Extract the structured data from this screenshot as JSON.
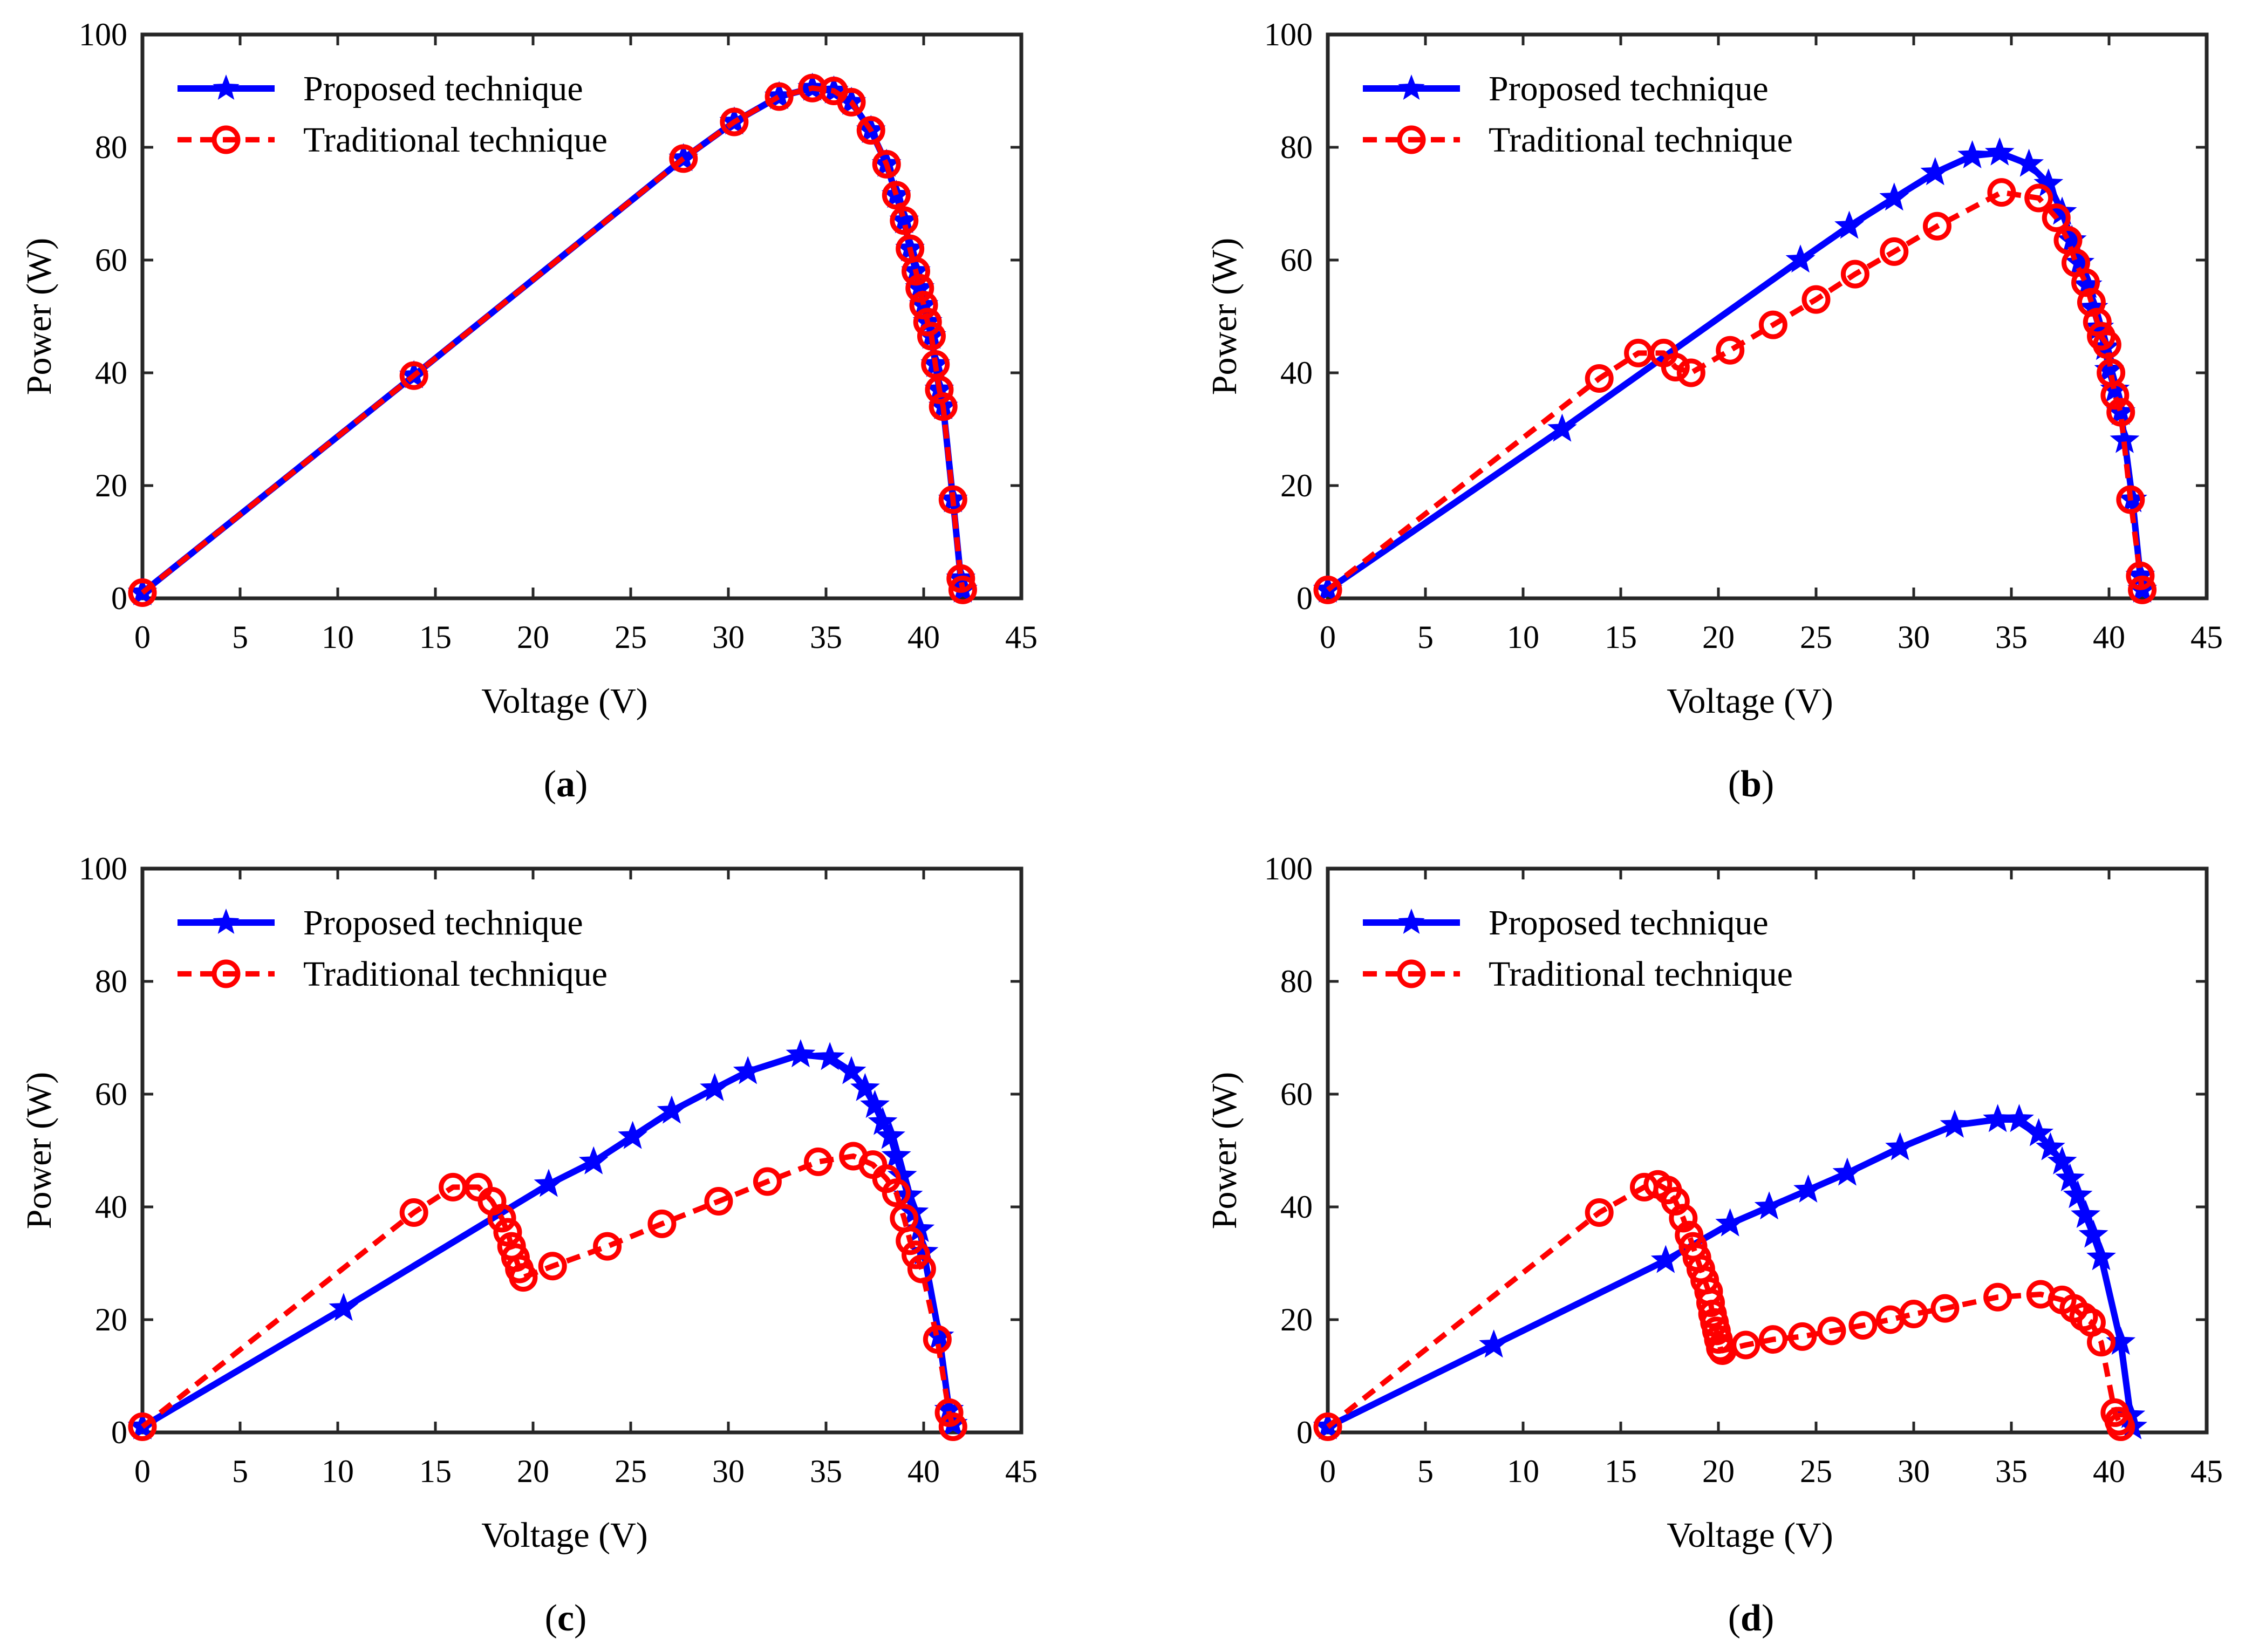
{
  "figure": {
    "panels": [
      "a",
      "b",
      "c",
      "d"
    ]
  },
  "series_colors": {
    "proposed": "#0000ff",
    "traditional": "#ff0000"
  },
  "chart_data": [
    {
      "id": "a",
      "caption_letter": "a",
      "type": "line",
      "xlabel": "Voltage (V)",
      "ylabel": "Power (W)",
      "xlim": [
        0,
        45
      ],
      "ylim": [
        0,
        100
      ],
      "xticks": [
        0,
        5,
        10,
        15,
        20,
        25,
        30,
        35,
        40,
        45
      ],
      "yticks": [
        0,
        20,
        40,
        60,
        80,
        100
      ],
      "legend": {
        "placement": "top-left",
        "entries": [
          "Proposed technique",
          "Traditional technique"
        ]
      },
      "series": [
        {
          "name": "Proposed technique",
          "color": "#0000ff",
          "marker": "star",
          "dash": "solid",
          "x": [
            0,
            13.9,
            27.7,
            30.3,
            32.6,
            34.3,
            35.4,
            36.3,
            37.3,
            38.1,
            38.6,
            39.0,
            39.3,
            39.6,
            39.8,
            40.0,
            40.2,
            40.4,
            40.6,
            40.8,
            41.0,
            41.5,
            41.9,
            42.0
          ],
          "y": [
            1,
            39.5,
            78,
            84.5,
            89,
            90.5,
            90,
            88,
            83,
            77,
            71.5,
            67,
            62,
            58,
            55,
            52,
            49,
            46.5,
            41.5,
            37,
            34,
            17.5,
            3.5,
            1.5
          ]
        },
        {
          "name": "Traditional technique",
          "color": "#ff0000",
          "marker": "circle",
          "dash": "dashed",
          "x": [
            0,
            13.9,
            27.7,
            30.3,
            32.6,
            34.3,
            35.4,
            36.3,
            37.3,
            38.1,
            38.6,
            39.0,
            39.3,
            39.6,
            39.8,
            40.0,
            40.2,
            40.4,
            40.6,
            40.8,
            41.0,
            41.5,
            41.9,
            42.0
          ],
          "y": [
            1,
            39.5,
            78,
            84.5,
            89,
            90.5,
            90,
            88,
            83,
            77,
            71.5,
            67,
            62,
            58,
            55,
            52,
            49,
            46.5,
            41.5,
            37,
            34,
            17.5,
            3.5,
            1.5
          ]
        }
      ]
    },
    {
      "id": "b",
      "caption_letter": "b",
      "type": "line",
      "xlabel": "Voltage (V)",
      "ylabel": "Power (W)",
      "xlim": [
        0,
        45
      ],
      "ylim": [
        0,
        100
      ],
      "xticks": [
        0,
        5,
        10,
        15,
        20,
        25,
        30,
        35,
        40,
        45
      ],
      "yticks": [
        0,
        20,
        40,
        60,
        80,
        100
      ],
      "legend": {
        "placement": "top-left",
        "entries": [
          "Proposed technique",
          "Traditional technique"
        ]
      },
      "series": [
        {
          "name": "Proposed technique",
          "color": "#0000ff",
          "marker": "star",
          "dash": "solid",
          "x": [
            0,
            12.0,
            24.2,
            26.7,
            29.0,
            31.1,
            33.0,
            34.4,
            35.9,
            36.9,
            37.6,
            38.1,
            38.5,
            38.9,
            39.2,
            39.5,
            39.8,
            40.0,
            40.3,
            40.6,
            40.8,
            41.2,
            41.6,
            41.7
          ],
          "y": [
            1.5,
            30,
            60,
            66,
            71,
            75.5,
            78.5,
            79,
            77,
            73.5,
            68.5,
            63.5,
            59.5,
            55.5,
            51.5,
            48,
            44.5,
            40.5,
            37,
            33,
            28,
            17.5,
            4,
            1.5
          ]
        },
        {
          "name": "Traditional technique",
          "color": "#ff0000",
          "marker": "circle",
          "dash": "dashed",
          "x": [
            0,
            13.9,
            15.9,
            17.2,
            17.8,
            18.6,
            20.6,
            22.8,
            25.0,
            27.0,
            29.0,
            31.2,
            34.5,
            36.4,
            37.3,
            37.9,
            38.3,
            38.8,
            39.1,
            39.4,
            39.6,
            39.9,
            40.1,
            40.3,
            40.6,
            41.1,
            41.6,
            41.7
          ],
          "y": [
            1.5,
            39,
            43.5,
            43.5,
            41,
            40,
            44,
            48.5,
            53,
            57.5,
            61.5,
            66,
            72,
            71,
            67.5,
            63.5,
            59.5,
            56,
            52.5,
            49,
            46.5,
            45,
            40,
            36,
            33,
            17.5,
            4,
            1.5
          ]
        }
      ]
    },
    {
      "id": "c",
      "caption_letter": "c",
      "type": "line",
      "xlabel": "Voltage (V)",
      "ylabel": "Power (W)",
      "xlim": [
        0,
        45
      ],
      "ylim": [
        0,
        100
      ],
      "xticks": [
        0,
        5,
        10,
        15,
        20,
        25,
        30,
        35,
        40,
        45
      ],
      "yticks": [
        0,
        20,
        40,
        60,
        80,
        100
      ],
      "legend": {
        "placement": "top-left",
        "entries": [
          "Proposed technique",
          "Traditional technique"
        ]
      },
      "series": [
        {
          "name": "Proposed technique",
          "color": "#0000ff",
          "marker": "star",
          "dash": "solid",
          "x": [
            0,
            10.3,
            20.8,
            23.1,
            25.1,
            27.1,
            29.3,
            31.0,
            33.7,
            35.2,
            36.3,
            37.0,
            37.5,
            37.9,
            38.3,
            38.6,
            38.9,
            39.2,
            39.5,
            39.8,
            40.0,
            40.8,
            41.3,
            41.5
          ],
          "y": [
            1,
            22,
            44,
            48,
            52.5,
            57,
            61,
            64,
            67,
            66.5,
            64,
            61,
            58,
            55,
            52.5,
            49,
            45.5,
            42,
            39,
            36,
            32,
            17,
            4,
            1.5
          ]
        },
        {
          "name": "Traditional technique",
          "color": "#ff0000",
          "marker": "circle",
          "dash": "dashed",
          "x": [
            0,
            13.9,
            15.9,
            17.2,
            17.9,
            18.4,
            18.7,
            18.9,
            19.1,
            19.3,
            19.5,
            21.0,
            23.8,
            26.6,
            29.5,
            32.0,
            34.6,
            36.4,
            37.4,
            38.1,
            38.6,
            39.0,
            39.3,
            39.6,
            39.9,
            40.7,
            41.3,
            41.5
          ],
          "y": [
            1,
            39,
            43.5,
            43.5,
            41,
            38,
            35.5,
            33,
            31,
            29,
            27.5,
            29.5,
            33,
            37,
            41,
            44.5,
            48,
            49,
            47.5,
            45,
            42.5,
            38,
            34,
            31.5,
            29,
            16.5,
            3.5,
            1
          ]
        }
      ]
    },
    {
      "id": "d",
      "caption_letter": "d",
      "type": "line",
      "xlabel": "Voltage (V)",
      "ylabel": "Power (W)",
      "xlim": [
        0,
        45
      ],
      "ylim": [
        0,
        100
      ],
      "xticks": [
        0,
        5,
        10,
        15,
        20,
        25,
        30,
        35,
        40,
        45
      ],
      "yticks": [
        0,
        20,
        40,
        60,
        80,
        100
      ],
      "legend": {
        "placement": "top-left",
        "entries": [
          "Proposed technique",
          "Traditional technique"
        ]
      },
      "series": [
        {
          "name": "Proposed technique",
          "color": "#0000ff",
          "marker": "star",
          "dash": "solid",
          "x": [
            0,
            8.5,
            17.3,
            20.6,
            22.6,
            24.6,
            26.6,
            29.3,
            32.1,
            34.3,
            35.4,
            36.4,
            37.0,
            37.6,
            38.0,
            38.4,
            38.8,
            39.2,
            39.6,
            40.6,
            41.1,
            41.2
          ],
          "y": [
            1,
            15.5,
            30.5,
            37,
            40,
            43,
            46,
            50.5,
            54.5,
            55.5,
            55.5,
            53,
            50.5,
            48,
            45,
            42,
            38.5,
            35,
            31,
            16,
            3,
            1
          ]
        },
        {
          "name": "Traditional technique",
          "color": "#ff0000",
          "marker": "circle",
          "dash": "dashed",
          "x": [
            0,
            13.9,
            16.2,
            16.9,
            17.4,
            17.8,
            18.2,
            18.5,
            18.7,
            18.9,
            19.1,
            19.3,
            19.5,
            19.6,
            19.7,
            19.8,
            19.9,
            20.0,
            20.1,
            20.2,
            21.4,
            22.8,
            24.3,
            25.8,
            27.4,
            28.8,
            30.0,
            31.6,
            34.3,
            36.5,
            37.6,
            38.2,
            38.7,
            39.1,
            39.6,
            40.3,
            40.5,
            40.6
          ],
          "y": [
            1,
            39,
            43.5,
            44,
            43,
            41,
            38,
            35,
            33,
            31,
            29,
            27,
            25,
            23,
            21,
            19.5,
            18,
            16.5,
            15,
            14.5,
            15.5,
            16.5,
            17,
            18,
            19,
            20,
            21,
            22,
            24,
            24.5,
            23.5,
            22,
            20.5,
            19.5,
            16,
            3.5,
            2,
            1
          ]
        }
      ]
    }
  ]
}
